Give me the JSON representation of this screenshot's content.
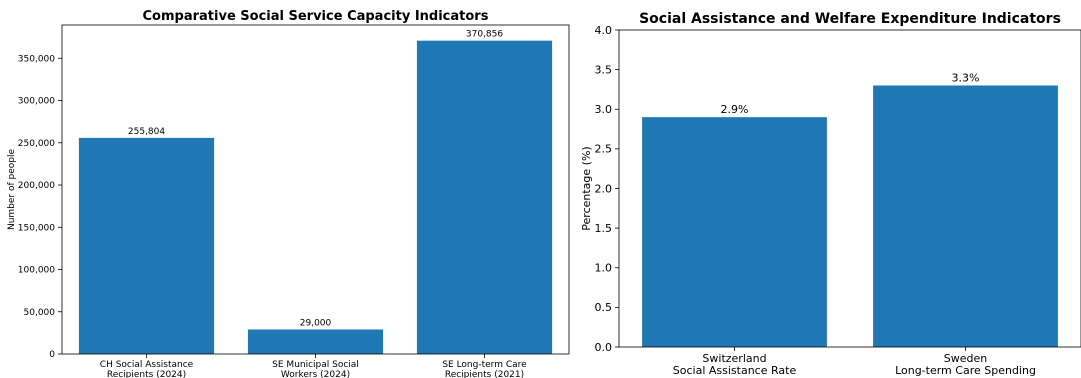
{
  "chart_data": [
    {
      "type": "bar",
      "title": "Comparative Social Service Capacity Indicators",
      "xlabel": "",
      "ylabel": "Number of people",
      "categories": [
        [
          "CH Social Assistance",
          "Recipients (2024)"
        ],
        [
          "SE Municipal Social",
          "Workers (2024)"
        ],
        [
          "SE Long-term Care",
          "Recipients (2021)"
        ]
      ],
      "values": [
        255804,
        29000,
        370856
      ],
      "value_labels": [
        "255,804",
        "29,000",
        "370,856"
      ],
      "ylim": [
        0,
        389399
      ],
      "yticks": [
        0,
        50000,
        100000,
        150000,
        200000,
        250000,
        300000,
        350000
      ],
      "ytick_labels": [
        "0",
        "50,000",
        "100,000",
        "150,000",
        "200,000",
        "250,000",
        "300,000",
        "350,000"
      ],
      "grid": false,
      "color": "#1f77b4"
    },
    {
      "type": "bar",
      "title": "Social Assistance and Welfare Expenditure Indicators",
      "xlabel": "",
      "ylabel": "Percentage (%)",
      "categories": [
        [
          "Switzerland",
          "Social Assistance Rate"
        ],
        [
          "Sweden",
          "Long-term Care Spending"
        ]
      ],
      "values": [
        2.9,
        3.3
      ],
      "value_labels": [
        "2.9%",
        "3.3%"
      ],
      "ylim": [
        0,
        4.0
      ],
      "yticks": [
        0.0,
        0.5,
        1.0,
        1.5,
        2.0,
        2.5,
        3.0,
        3.5,
        4.0
      ],
      "ytick_labels": [
        "0.0",
        "0.5",
        "1.0",
        "1.5",
        "2.0",
        "2.5",
        "3.0",
        "3.5",
        "4.0"
      ],
      "grid": false,
      "color": "#1f77b4"
    }
  ]
}
